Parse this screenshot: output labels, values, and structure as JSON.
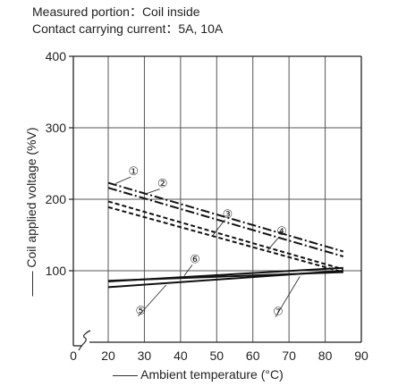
{
  "header": {
    "measured_portion": "Measured portion：Coil inside",
    "contact_current": "Contact carrying current：5A, 10A"
  },
  "chart_data": {
    "type": "line",
    "title": "",
    "xlabel": "Ambient temperature (°C)",
    "ylabel": "Coil applied voltage (%V)",
    "xlim": [
      0,
      90
    ],
    "ylim": [
      0,
      400
    ],
    "x_axis_break": true,
    "x_ticks": [
      "0",
      "20",
      "30",
      "40",
      "50",
      "60",
      "70",
      "80",
      "90"
    ],
    "y_ticks": [
      "100",
      "200",
      "300",
      "400"
    ],
    "grid": true,
    "series": [
      {
        "name": "①",
        "style": "dash-dot",
        "x": [
          20,
          85
        ],
        "y": [
          223,
          127
        ]
      },
      {
        "name": "②",
        "style": "dash-dot",
        "x": [
          20,
          85
        ],
        "y": [
          216,
          120
        ]
      },
      {
        "name": "③",
        "style": "dashed",
        "x": [
          20,
          85
        ],
        "y": [
          197,
          102
        ]
      },
      {
        "name": "④",
        "style": "dashed",
        "x": [
          20,
          85
        ],
        "y": [
          189,
          98
        ]
      },
      {
        "name": "⑤",
        "style": "solid",
        "x": [
          20,
          85
        ],
        "y": [
          77,
          100
        ]
      },
      {
        "name": "⑥",
        "style": "solid",
        "x": [
          20,
          85
        ],
        "y": [
          85,
          104
        ]
      },
      {
        "name": "⑦",
        "style": "solid",
        "x": [
          20,
          85
        ],
        "y": [
          86,
          98
        ]
      }
    ],
    "annotations": [
      {
        "label": "①",
        "x": 27,
        "y": 240,
        "line_to": [
          22,
          222
        ]
      },
      {
        "label": "②",
        "x": 35,
        "y": 223,
        "line_to": [
          30,
          207
        ]
      },
      {
        "label": "③",
        "x": 53,
        "y": 180,
        "line_to": [
          49,
          150
        ]
      },
      {
        "label": "④",
        "x": 68,
        "y": 156,
        "line_to": [
          64,
          128
        ]
      },
      {
        "label": "⑤",
        "x": 29,
        "y": 45,
        "line_to": [
          36,
          80
        ]
      },
      {
        "label": "⑥",
        "x": 44,
        "y": 117,
        "line_to": [
          41,
          93
        ]
      },
      {
        "label": "⑦",
        "x": 67,
        "y": 44,
        "line_to": [
          73,
          92
        ]
      }
    ]
  }
}
